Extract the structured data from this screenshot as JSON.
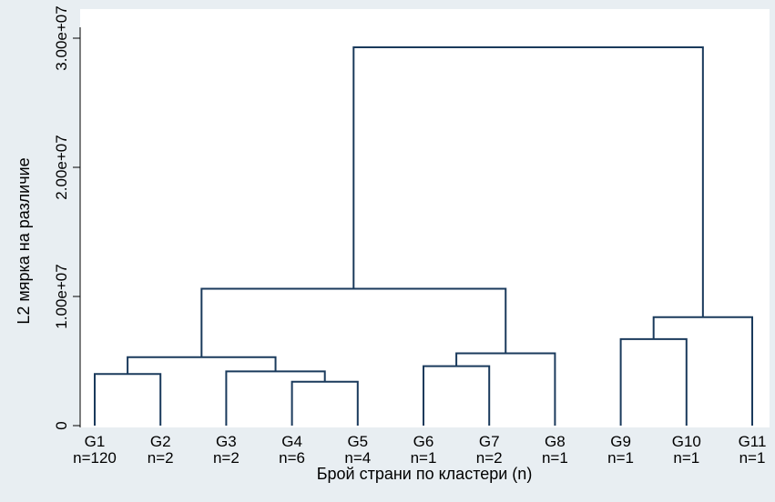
{
  "chart_data": {
    "type": "dendrogram",
    "title": "",
    "xlabel": "Брой страни по кластери (n)",
    "ylabel": "L2 мярка на различие",
    "ylim": [
      0,
      30000000
    ],
    "yticks": [
      {
        "value": 0,
        "label": "0"
      },
      {
        "value": 10000000,
        "label": "1.00e+07"
      },
      {
        "value": 20000000,
        "label": "2.00e+07"
      },
      {
        "value": 30000000,
        "label": "3.00e+07"
      }
    ],
    "leaves": [
      {
        "group": "G1",
        "n": "n=120"
      },
      {
        "group": "G2",
        "n": "n=2"
      },
      {
        "group": "G3",
        "n": "n=2"
      },
      {
        "group": "G4",
        "n": "n=6"
      },
      {
        "group": "G5",
        "n": "n=4"
      },
      {
        "group": "G6",
        "n": "n=1"
      },
      {
        "group": "G7",
        "n": "n=2"
      },
      {
        "group": "G8",
        "n": "n=1"
      },
      {
        "group": "G9",
        "n": "n=1"
      },
      {
        "group": "G10",
        "n": "n=1"
      },
      {
        "group": "G11",
        "n": "n=1"
      }
    ],
    "merges": [
      {
        "left": "G1",
        "right": "G2",
        "height": 4000000
      },
      {
        "left": "G4",
        "right": "G5",
        "height": 3400000
      },
      {
        "left": "G3",
        "right": "G4-G5",
        "height": 4200000
      },
      {
        "left": "G1-G2",
        "right": "G3-G5",
        "height": 5300000
      },
      {
        "left": "G6",
        "right": "G7",
        "height": 4600000
      },
      {
        "left": "G6-G7",
        "right": "G8",
        "height": 5600000
      },
      {
        "left": "G1-G5",
        "right": "G6-G8",
        "height": 10600000
      },
      {
        "left": "G9",
        "right": "G10",
        "height": 6700000
      },
      {
        "left": "G9-G10",
        "right": "G11",
        "height": 8400000
      },
      {
        "left": "G1-G8",
        "right": "G9-G11",
        "height": 29300000
      }
    ],
    "grid": false,
    "colors": {
      "line": "#1a3a5c",
      "plot_bg": "#ffffff",
      "page_bg": "#e8eef2"
    }
  }
}
